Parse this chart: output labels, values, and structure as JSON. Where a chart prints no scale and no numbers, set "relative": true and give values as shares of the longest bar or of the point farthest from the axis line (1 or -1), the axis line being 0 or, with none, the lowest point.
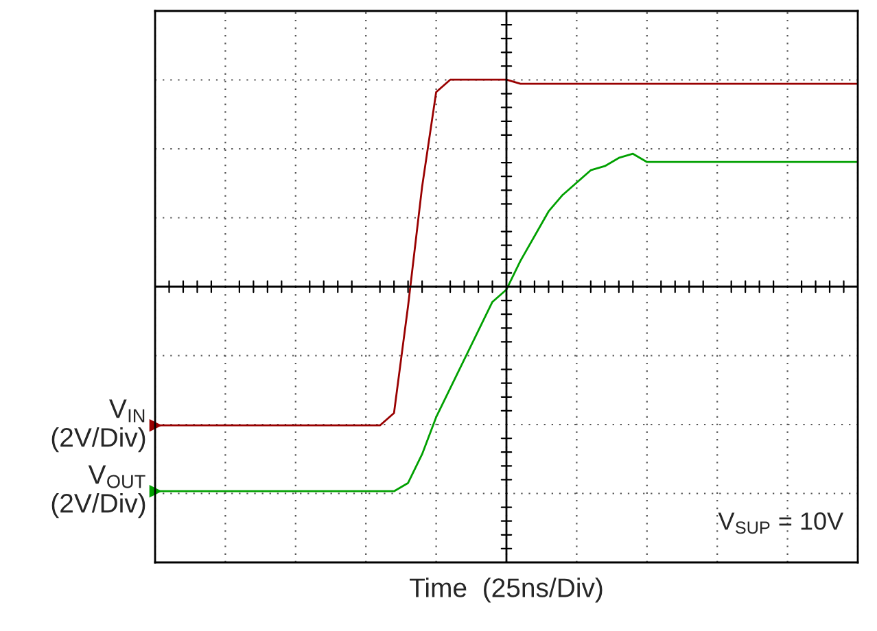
{
  "chart_data": {
    "type": "line",
    "relative": true,
    "xlabel": "Time  (25ns/Div)",
    "grid": true,
    "legend": false,
    "categories": [
      null,
      null,
      null,
      null,
      null,
      null,
      null,
      null,
      null,
      null,
      null,
      null,
      null,
      null,
      null,
      null,
      null,
      null,
      null,
      null,
      null,
      null,
      null,
      null,
      null,
      null,
      null,
      null,
      null,
      null,
      null,
      null,
      null,
      null,
      null,
      null,
      null,
      null,
      null,
      null,
      null,
      null,
      null,
      null,
      null,
      null,
      null,
      null,
      null,
      null,
      null
    ],
    "series": [
      {
        "name": "V$_{IN}$\n(2V/Div)",
        "color": "#990000",
        "values": [
          0.16,
          0.16,
          0.16,
          0.16,
          0.16,
          0.16,
          0.16,
          0.16,
          0.16,
          0.16,
          0.16,
          0.16,
          0.16,
          0.16,
          0.16,
          0.16,
          0.16,
          0.19,
          0.45,
          0.74,
          0.97,
          1.0,
          1.0,
          1.0,
          1.0,
          1.0,
          0.99,
          0.99,
          0.99,
          0.99,
          0.99,
          0.99,
          0.99,
          0.99,
          0.99,
          0.99,
          0.99,
          0.99,
          0.99,
          0.99,
          0.99,
          0.99,
          0.99,
          0.99,
          0.99,
          0.99,
          0.99,
          0.99,
          0.99,
          0.99,
          0.99
        ]
      },
      {
        "name": "V$_{OUT}$\n(2V/Div)",
        "color": "#00a000",
        "values": [
          0.0,
          0.0,
          0.0,
          0.0,
          0.0,
          0.0,
          0.0,
          0.0,
          0.0,
          0.0,
          0.0,
          0.0,
          0.0,
          0.0,
          0.0,
          0.0,
          0.0,
          0.0,
          0.02,
          0.09,
          0.18,
          0.25,
          0.32,
          0.39,
          0.46,
          0.49,
          0.56,
          0.62,
          0.68,
          0.72,
          0.75,
          0.78,
          0.79,
          0.81,
          0.82,
          0.8,
          0.8,
          0.8,
          0.8,
          0.8,
          0.8,
          0.8,
          0.8,
          0.8,
          0.8,
          0.8,
          0.8,
          0.8,
          0.8,
          0.8,
          0.8
        ]
      }
    ],
    "annotations": [
      "V$_{SUP}$ = 10V"
    ]
  }
}
